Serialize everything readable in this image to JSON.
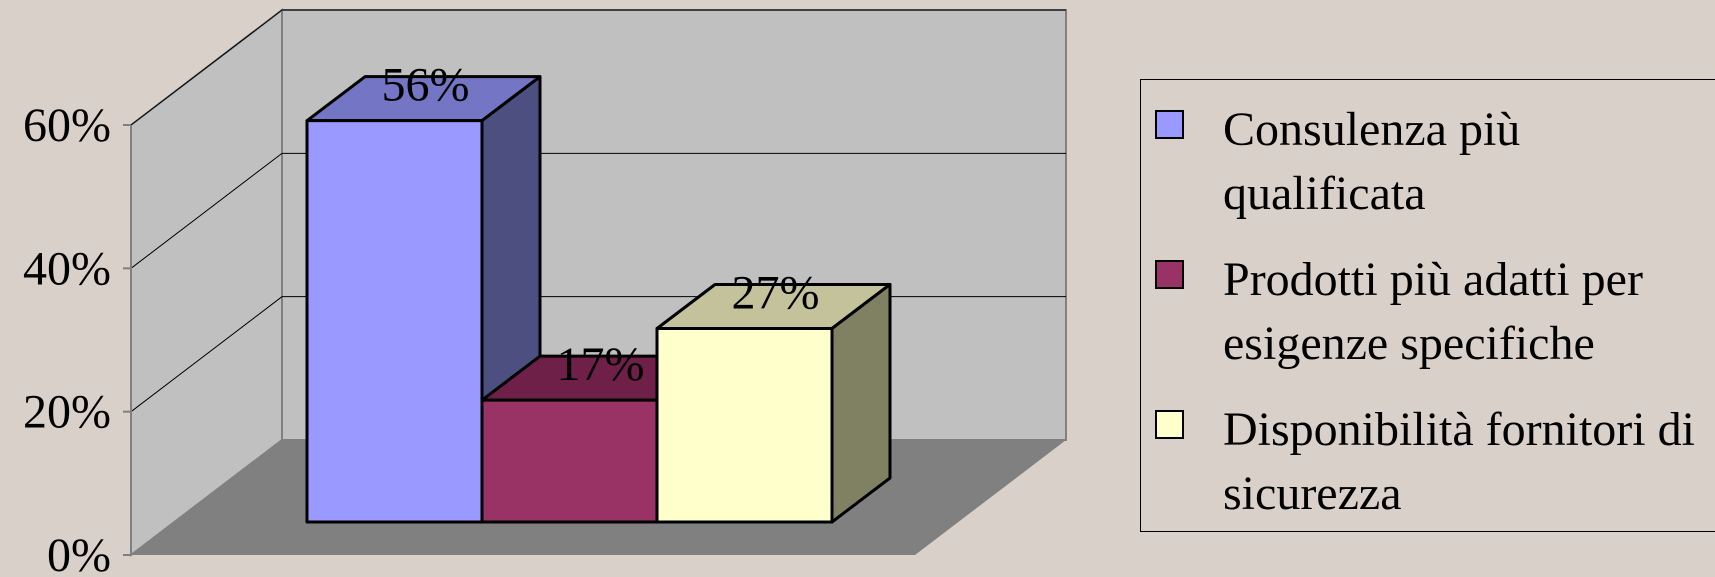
{
  "chart_data": {
    "type": "bar",
    "three_d": true,
    "categories": [
      "Consulenza più qualificata",
      "Prodotti più adatti per esigenze specifiche",
      "Disponibilità fornitori di sicurezza"
    ],
    "values": [
      56,
      17,
      27
    ],
    "data_labels": [
      "56%",
      "17%",
      "27%"
    ],
    "ylim": [
      0,
      60
    ],
    "yticks": [
      0,
      20,
      40,
      60
    ],
    "ytick_labels": [
      "0%",
      "20%",
      "40%",
      "60%"
    ],
    "grid": true,
    "legend_position": "right",
    "title": "",
    "xlabel": "",
    "ylabel": ""
  },
  "colors": {
    "background": "#d9d0c9",
    "wall": "#c0c0c0",
    "floor": "#808080",
    "series": [
      {
        "front": "#9999ff",
        "top": "#7575c6",
        "side": "#4d4f80"
      },
      {
        "front": "#993366",
        "top": "#6e2049",
        "side": "#4a1531"
      },
      {
        "front": "#ffffcc",
        "top": "#c4c29b",
        "side": "#808062"
      }
    ]
  },
  "legend": {
    "items": [
      {
        "label": "Consulenza più qualificata"
      },
      {
        "label": "Prodotti più adatti per esigenze specifiche"
      },
      {
        "label": "Disponibilità fornitori di sicurezza"
      }
    ]
  }
}
